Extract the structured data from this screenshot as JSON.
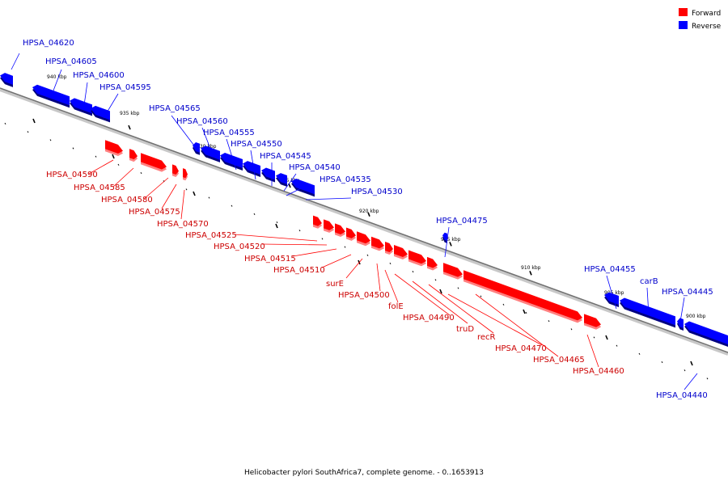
{
  "legend": [
    {
      "label": "Forward",
      "color": "#ff0000"
    },
    {
      "label": "Reverse",
      "color": "#0000ff"
    }
  ],
  "caption": "Helicobacter pylori SouthAfrica7, complete genome. - 0..1653913",
  "ticks": [
    "940 kbp",
    "935 kbp",
    "930 kbp",
    "925 kbp",
    "920 kbp",
    "915 kbp",
    "910 kbp",
    "905 kbp",
    "900 kbp"
  ],
  "reverse_genes": [
    "HPSA_04620",
    "HPSA_04605",
    "HPSA_04600",
    "HPSA_04595",
    "HPSA_04565",
    "HPSA_04560",
    "HPSA_04555",
    "HPSA_04550",
    "HPSA_04545",
    "HPSA_04540",
    "HPSA_04535",
    "HPSA_04530",
    "HPSA_04475",
    "HPSA_04455",
    "carB",
    "HPSA_04445",
    "HPSA_04440"
  ],
  "forward_genes": [
    "HPSA_04590",
    "HPSA_04585",
    "HPSA_04580",
    "HPSA_04575",
    "HPSA_04570",
    "HPSA_04525",
    "HPSA_04520",
    "HPSA_04515",
    "HPSA_04510",
    "surE",
    "HPSA_04500",
    "folE",
    "HPSA_04490",
    "truD",
    "recR",
    "HPSA_04470",
    "HPSA_04465",
    "HPSA_04460"
  ]
}
